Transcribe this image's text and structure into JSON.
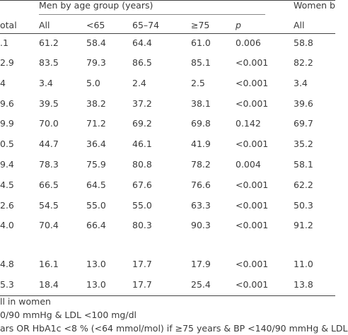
{
  "header": {
    "group_men": "Men by age group (years)",
    "group_women": "Women b",
    "columns": [
      "otal",
      "All",
      "<65",
      "65–74",
      "≥75",
      "p",
      "All"
    ]
  },
  "table": {
    "rows": [
      [
        ".1",
        "61.2",
        "58.4",
        "64.4",
        "61.0",
        "0.006",
        "58.8"
      ],
      [
        "2.9",
        "83.5",
        "79.3",
        "86.5",
        "85.1",
        "<0.001",
        "82.2"
      ],
      [
        "4",
        "3.4",
        "5.0",
        "2.4",
        "2.5",
        "<0.001",
        "3.4"
      ],
      [
        "9.6",
        "39.5",
        "38.2",
        "37.2",
        "38.1",
        "<0.001",
        "39.6"
      ],
      [
        "9.9",
        "70.0",
        "71.2",
        "69.2",
        "69.8",
        "0.142",
        "69.7"
      ],
      [
        "0.5",
        "44.7",
        "36.4",
        "46.1",
        "41.9",
        "<0.001",
        "35.2"
      ],
      [
        "9.4",
        "78.3",
        "75.9",
        "80.8",
        "78.2",
        "0.004",
        "58.1"
      ],
      [
        "4.5",
        "66.5",
        "64.5",
        "67.6",
        "76.6",
        "<0.001",
        "62.2"
      ],
      [
        "2.6",
        "54.5",
        "55.0",
        "55.0",
        "63.3",
        "<0.001",
        "50.3"
      ],
      [
        "4.0",
        "70.4",
        "66.4",
        "80.3",
        "90.3",
        "<0.001",
        "91.2"
      ],
      [
        "4.8",
        "16.1",
        "13.0",
        "17.7",
        "17.9",
        "<0.001",
        "11.0"
      ],
      [
        "5.3",
        "18.4",
        "13.0",
        "17.7",
        "25.4",
        "<0.001",
        "13.8"
      ]
    ]
  },
  "footnotes": [
    "ll in women",
    "0/90 mmHg & LDL <100 mg/dl",
    "ars OR HbA1c <8 % (<64 mmol/mol) if ≥75 years & BP <140/90 mmHg & LDL"
  ]
}
